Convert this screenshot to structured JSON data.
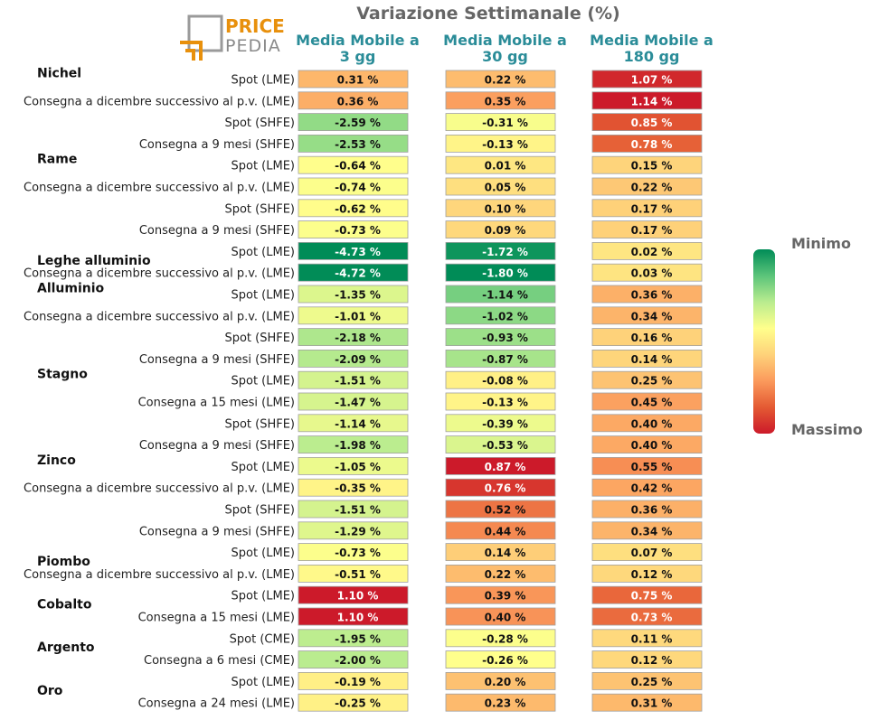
{
  "logo": {
    "word1": "PRICE",
    "word2": "PEDIA"
  },
  "chart_data": {
    "type": "heatmap",
    "title": "Variazione Settimanale (%)",
    "columns": [
      "Media Mobile a\n3 gg",
      "Media Mobile a\n30 gg",
      "Media Mobile a\n180 gg"
    ],
    "legend": {
      "min_label": "Minimo",
      "max_label": "Massimo"
    },
    "color_scale": [
      "#008c57",
      "#5bc47a",
      "#b9ec8f",
      "#ffff8c",
      "#fed27a",
      "#fb9a5c",
      "#e45a33",
      "#cc1a2a"
    ],
    "value_suffix": " %",
    "groups": [
      {
        "name": "Nichel",
        "rows": [
          {
            "label": "Spot (LME)",
            "values": [
              0.31,
              0.22,
              1.07
            ]
          },
          {
            "label": "Consegna a dicembre successivo al p.v. (LME)",
            "values": [
              0.36,
              0.35,
              1.14
            ]
          },
          {
            "label": "Spot (SHFE)",
            "values": [
              -2.59,
              -0.31,
              0.85
            ]
          },
          {
            "label": "Consegna a 9 mesi (SHFE)",
            "values": [
              -2.53,
              -0.13,
              0.78
            ]
          }
        ]
      },
      {
        "name": "Rame",
        "rows": [
          {
            "label": "Spot (LME)",
            "values": [
              -0.64,
              0.01,
              0.15
            ]
          },
          {
            "label": "Consegna a dicembre successivo al p.v. (LME)",
            "values": [
              -0.74,
              0.05,
              0.22
            ]
          },
          {
            "label": "Spot (SHFE)",
            "values": [
              -0.62,
              0.1,
              0.17
            ]
          },
          {
            "label": "Consegna a 9 mesi (SHFE)",
            "values": [
              -0.73,
              0.09,
              0.17
            ]
          }
        ]
      },
      {
        "name": "Leghe alluminio",
        "rows": [
          {
            "label": "Spot (LME)",
            "values": [
              -4.73,
              -1.72,
              0.02
            ]
          },
          {
            "label": "Consegna a dicembre successivo al p.v. (LME)",
            "values": [
              -4.72,
              -1.8,
              0.03
            ]
          }
        ]
      },
      {
        "name": "Alluminio",
        "rows": [
          {
            "label": "Spot (LME)",
            "values": [
              -1.35,
              -1.14,
              0.36
            ]
          },
          {
            "label": "Consegna a dicembre successivo al p.v. (LME)",
            "values": [
              -1.01,
              -1.02,
              0.34
            ]
          },
          {
            "label": "Spot (SHFE)",
            "values": [
              -2.18,
              -0.93,
              0.16
            ]
          },
          {
            "label": "Consegna a 9 mesi (SHFE)",
            "values": [
              -2.09,
              -0.87,
              0.14
            ]
          }
        ]
      },
      {
        "name": "Stagno",
        "rows": [
          {
            "label": "Spot (LME)",
            "values": [
              -1.51,
              -0.08,
              0.25
            ]
          },
          {
            "label": "Consegna a 15 mesi (LME)",
            "values": [
              -1.47,
              -0.13,
              0.45
            ]
          },
          {
            "label": "Spot (SHFE)",
            "values": [
              -1.14,
              -0.39,
              0.4
            ]
          },
          {
            "label": "Consegna a 9 mesi (SHFE)",
            "values": [
              -1.98,
              -0.53,
              0.4
            ]
          }
        ]
      },
      {
        "name": "Zinco",
        "rows": [
          {
            "label": "Spot (LME)",
            "values": [
              -1.05,
              0.87,
              0.55
            ]
          },
          {
            "label": "Consegna a dicembre successivo al p.v. (LME)",
            "values": [
              -0.35,
              0.76,
              0.42
            ]
          },
          {
            "label": "Spot (SHFE)",
            "values": [
              -1.51,
              0.52,
              0.36
            ]
          },
          {
            "label": "Consegna a 9 mesi (SHFE)",
            "values": [
              -1.29,
              0.44,
              0.34
            ]
          }
        ]
      },
      {
        "name": "Piombo",
        "rows": [
          {
            "label": "Spot (LME)",
            "values": [
              -0.73,
              0.14,
              0.07
            ]
          },
          {
            "label": "Consegna a dicembre successivo al p.v. (LME)",
            "values": [
              -0.51,
              0.22,
              0.12
            ]
          }
        ]
      },
      {
        "name": "Cobalto",
        "rows": [
          {
            "label": "Spot (LME)",
            "values": [
              1.1,
              0.39,
              0.75
            ]
          },
          {
            "label": "Consegna a 15 mesi (LME)",
            "values": [
              1.1,
              0.4,
              0.73
            ]
          }
        ]
      },
      {
        "name": "Argento",
        "rows": [
          {
            "label": "Spot (CME)",
            "values": [
              -1.95,
              -0.28,
              0.11
            ]
          },
          {
            "label": "Consegna a 6 mesi (CME)",
            "values": [
              -2.0,
              -0.26,
              0.12
            ]
          }
        ]
      },
      {
        "name": "Oro",
        "rows": [
          {
            "label": "Spot (LME)",
            "values": [
              -0.19,
              0.2,
              0.25
            ]
          },
          {
            "label": "Consegna a 24 mesi (LME)",
            "values": [
              -0.25,
              0.23,
              0.31
            ]
          }
        ]
      }
    ]
  }
}
